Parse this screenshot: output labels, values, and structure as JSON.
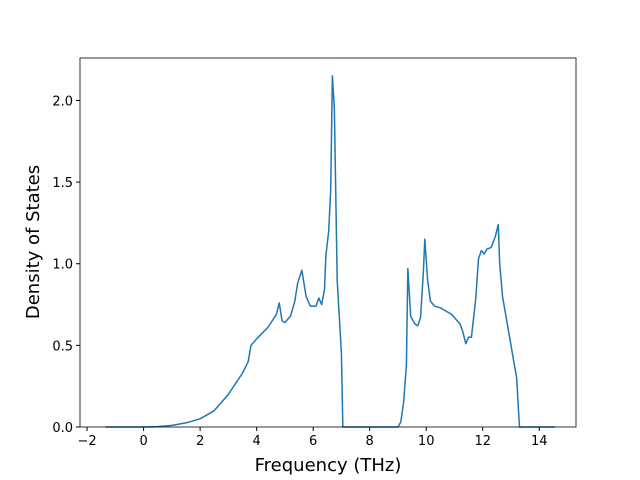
{
  "chart_data": {
    "type": "line",
    "xlabel": "Frequency (THz)",
    "ylabel": "Density of States",
    "x": [
      -1.35,
      0,
      0.5,
      1,
      1.5,
      2,
      2.5,
      3,
      3.5,
      3.7,
      3.8,
      4,
      4.4,
      4.7,
      4.8,
      4.9,
      5.0,
      5.2,
      5.35,
      5.45,
      5.6,
      5.75,
      5.9,
      6.1,
      6.2,
      6.3,
      6.4,
      6.45,
      6.55,
      6.62,
      6.68,
      6.75,
      6.85,
      6.95,
      7.0,
      7.05,
      7.5,
      9.0,
      9.1,
      9.2,
      9.3,
      9.35,
      9.45,
      9.6,
      9.7,
      9.8,
      9.9,
      9.95,
      10.05,
      10.15,
      10.3,
      10.5,
      10.9,
      11.2,
      11.3,
      11.4,
      11.5,
      11.6,
      11.75,
      11.85,
      11.95,
      12.05,
      12.15,
      12.3,
      12.45,
      12.55,
      12.6,
      12.7,
      12.9,
      13.1,
      13.2,
      13.3,
      14.55
    ],
    "series": [
      {
        "color": "#1f77b4",
        "values": [
          0,
          0,
          0.002,
          0.01,
          0.025,
          0.05,
          0.1,
          0.2,
          0.33,
          0.4,
          0.5,
          0.54,
          0.61,
          0.69,
          0.76,
          0.65,
          0.64,
          0.68,
          0.77,
          0.88,
          0.96,
          0.8,
          0.74,
          0.74,
          0.79,
          0.75,
          0.84,
          1.05,
          1.2,
          1.45,
          2.15,
          1.95,
          0.9,
          0.6,
          0.45,
          0,
          0,
          0,
          0.03,
          0.15,
          0.38,
          0.97,
          0.68,
          0.63,
          0.62,
          0.67,
          0.95,
          1.15,
          0.9,
          0.77,
          0.74,
          0.73,
          0.69,
          0.63,
          0.58,
          0.51,
          0.55,
          0.55,
          0.78,
          1.03,
          1.08,
          1.06,
          1.09,
          1.1,
          1.17,
          1.24,
          1.0,
          0.8,
          0.6,
          0.4,
          0.3,
          0,
          0
        ]
      }
    ],
    "xlim": [
      -2.25,
      15.3
    ],
    "ylim": [
      0,
      2.26
    ],
    "xticks": [
      {
        "value": -2,
        "label": "−2"
      },
      0,
      2,
      4,
      6,
      8,
      10,
      12,
      14
    ],
    "yticks": [
      {
        "value": 0,
        "label": "0.0"
      },
      0.5,
      {
        "value": 1,
        "label": "1.0"
      },
      1.5,
      {
        "value": 2,
        "label": "2.0"
      }
    ]
  }
}
